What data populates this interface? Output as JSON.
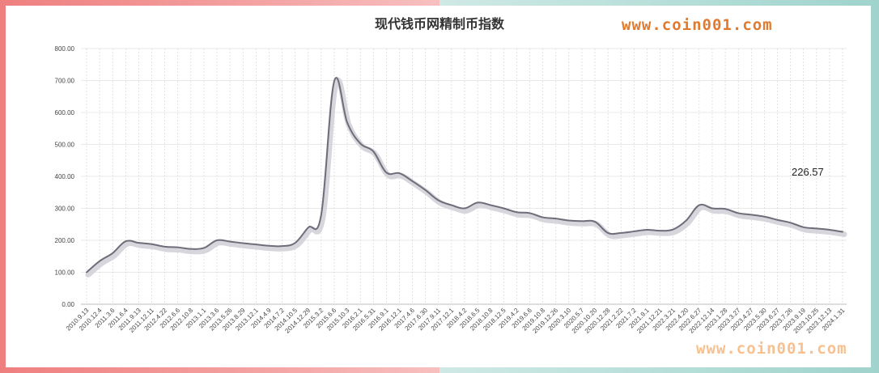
{
  "chart_data": {
    "type": "line",
    "title": "现代钱币网精制币指数",
    "xlabel": "",
    "ylabel": "",
    "ylim": [
      0,
      800
    ],
    "y_ticks": [
      "0.00",
      "100.00",
      "200.00",
      "300.00",
      "400.00",
      "500.00",
      "600.00",
      "700.00",
      "800.00"
    ],
    "grid": "horizontal-solid, vertical-dashed",
    "annotation": "226.57",
    "categories": [
      "2010.9.13",
      "2010.12.4",
      "2011.3.6",
      "2011.6.4",
      "2011.9.13",
      "2011.12.11",
      "2012.4.22",
      "2012.6.6",
      "2012.10.8",
      "2013.1.1",
      "2013.3.6",
      "2013.5.26",
      "2013.8.29",
      "2013.12.1",
      "2014.4.9",
      "2014.7.2",
      "2014.10.5",
      "2014.12.29",
      "2015.3.2",
      "2015.6.6",
      "2015.10.3",
      "2016.2.1",
      "2016.5.31",
      "2016.9.1",
      "2016.12.1",
      "2017.4.6",
      "2017.6.30",
      "2017.9.11",
      "2017.12.1",
      "2018.4.2",
      "2018.6.5",
      "2018.10.8",
      "2018.12.5",
      "2019.4.2",
      "2019.6.6",
      "2019.10.8",
      "2019.12.26",
      "2020.3.10",
      "2020.5.7",
      "2020.10.20",
      "2020.12.28",
      "2021.2.22",
      "2021.7.2",
      "2021.9.1",
      "2021.12.21",
      "2022.3.21",
      "2022.4.20",
      "2022.6.27",
      "2022.12.14",
      "2023.1.28",
      "2023.3.27",
      "2023.4.27",
      "2023.5.30",
      "2023.6.27",
      "2023.7.26",
      "2023.9.19",
      "2023.10.25",
      "2023.12.13",
      "2024.1.31"
    ],
    "series": [
      {
        "values": [
          100,
          135,
          160,
          197,
          192,
          188,
          180,
          178,
          173,
          176,
          200,
          196,
          191,
          187,
          183,
          182,
          192,
          240,
          280,
          698,
          568,
          503,
          478,
          412,
          410,
          385,
          357,
          325,
          310,
          300,
          318,
          310,
          300,
          288,
          285,
          272,
          268,
          262,
          260,
          258,
          223,
          223,
          228,
          233,
          230,
          234,
          262,
          310,
          300,
          298,
          285,
          280,
          274,
          264,
          255,
          241,
          237,
          233,
          226.57
        ]
      }
    ]
  },
  "watermark": {
    "top": "www.coin001.com",
    "bottom": "www.coin001.com"
  },
  "colors": {
    "line": "#6e6e7a",
    "shadow": "#d2d2d8",
    "grid": "#e9e9e9",
    "vgrid": "#cfcfcf"
  }
}
